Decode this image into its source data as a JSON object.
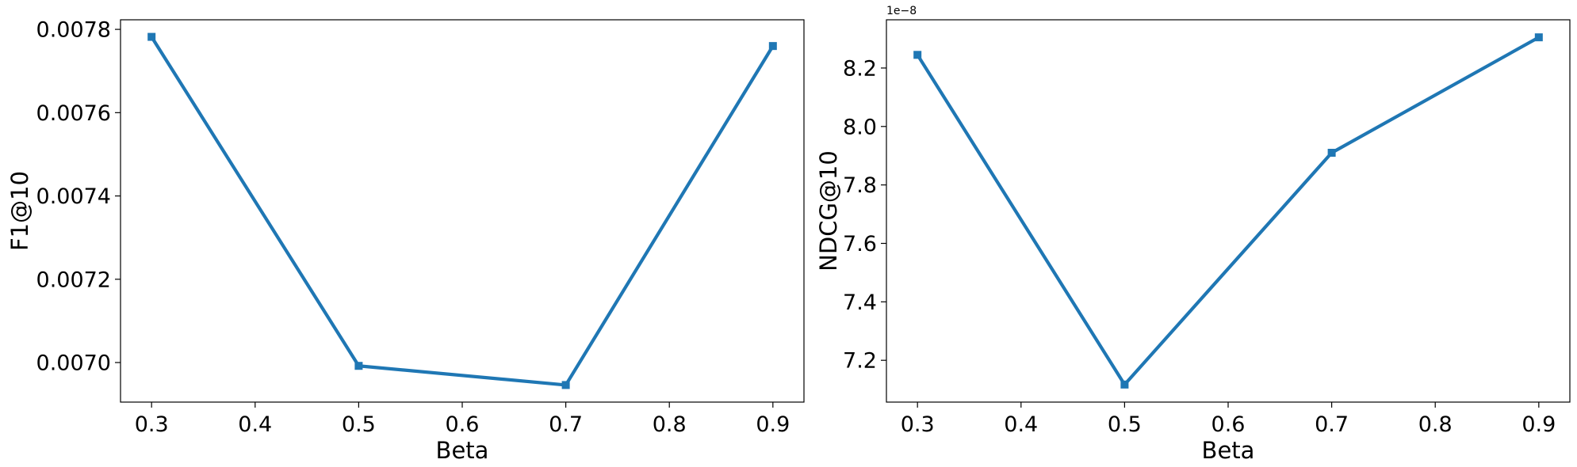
{
  "chart_data": [
    {
      "type": "line",
      "xlabel": "Beta",
      "ylabel": "F1@10",
      "x": [
        0.3,
        0.5,
        0.7,
        0.9
      ],
      "series": [
        {
          "values": [
            0.007782,
            0.006992,
            0.006946,
            0.00776
          ],
          "color": "#1f77b4",
          "marker": "square"
        }
      ],
      "xticks": [
        0.3,
        0.4,
        0.5,
        0.6,
        0.7,
        0.8,
        0.9
      ],
      "xtick_labels": [
        "0.3",
        "0.4",
        "0.5",
        "0.6",
        "0.7",
        "0.8",
        "0.9"
      ],
      "yticks": [
        0.007,
        0.0072,
        0.0074,
        0.0076,
        0.0078
      ],
      "ytick_labels": [
        "0.0070",
        "0.0072",
        "0.0074",
        "0.0076",
        "0.0078"
      ],
      "xlim": [
        0.27,
        0.93
      ],
      "ylim": [
        0.006905,
        0.007823
      ],
      "offset_text": "",
      "grid": false
    },
    {
      "type": "line",
      "xlabel": "Beta",
      "ylabel": "NDCG@10",
      "x": [
        0.3,
        0.5,
        0.7,
        0.9
      ],
      "series": [
        {
          "values": [
            8.245e-08,
            7.117e-08,
            7.91e-08,
            8.305e-08
          ],
          "color": "#1f77b4",
          "marker": "square"
        }
      ],
      "xticks": [
        0.3,
        0.4,
        0.5,
        0.6,
        0.7,
        0.8,
        0.9
      ],
      "xtick_labels": [
        "0.3",
        "0.4",
        "0.5",
        "0.6",
        "0.7",
        "0.8",
        "0.9"
      ],
      "yticks": [
        7.2e-08,
        7.4e-08,
        7.6e-08,
        7.8e-08,
        8e-08,
        8.2e-08
      ],
      "ytick_labels": [
        "7.2",
        "7.4",
        "7.6",
        "7.8",
        "8.0",
        "8.2"
      ],
      "xlim": [
        0.27,
        0.93
      ],
      "ylim": [
        7.057e-08,
        8.365e-08
      ],
      "offset_text": "1e−8",
      "grid": false
    }
  ]
}
